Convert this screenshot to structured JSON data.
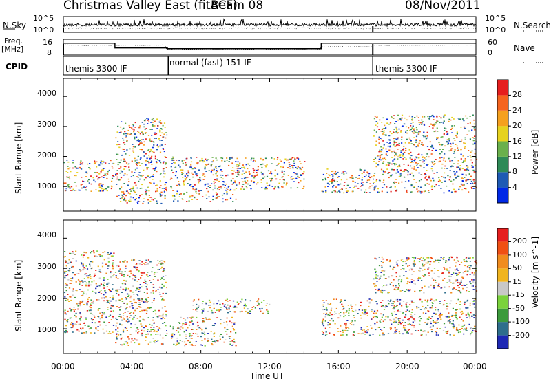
{
  "header": {
    "station": "Christmas Valley East (fitACF)",
    "beam": "Beam 08",
    "date": "08/Nov/2011"
  },
  "noise_panel": {
    "left_label": "N.Sky",
    "left_ticks": [
      "10^5",
      "10^0"
    ],
    "right_label": "N.Search",
    "right_ticks": [
      "10^5",
      "10^0"
    ]
  },
  "freq_panel": {
    "left_label_1": "Freq.",
    "left_label_2": "[MHz]",
    "left_ticks": [
      "16",
      "8"
    ],
    "right_label": "Nave",
    "right_ticks": [
      "60",
      "0"
    ]
  },
  "cpid": {
    "label": "CPID",
    "modes": [
      {
        "name": "themis 3300 IF",
        "start": 0.0,
        "end": 6.1
      },
      {
        "name": "normal (fast) 151 IF",
        "start": 6.1,
        "end": 18.0
      },
      {
        "name": "themis 3300 IF",
        "start": 18.0,
        "end": 24.0
      }
    ]
  },
  "chart_data": [
    {
      "type": "heatmap",
      "quantity": "Power",
      "ylabel": "Slant Range [km]",
      "yticks": [
        1000,
        2000,
        3000,
        4000
      ],
      "ylim": [
        180,
        4600
      ],
      "xlim": [
        0,
        24
      ],
      "colorbar": {
        "label": "Power [dB]",
        "ticks": [
          "4",
          "8",
          "12",
          "16",
          "20",
          "24",
          "28"
        ],
        "colors": [
          "#0028e6",
          "#1e5ab4",
          "#2e8a57",
          "#6ab04c",
          "#e6d21e",
          "#f5a01e",
          "#f5641e",
          "#e61e1e"
        ]
      },
      "features": [
        {
          "t": [
            0.0,
            2.9
          ],
          "r": [
            850,
            1900
          ],
          "value": "16-28"
        },
        {
          "t": [
            3.0,
            6.0
          ],
          "r": [
            450,
            3300
          ],
          "value": "4-12"
        },
        {
          "t": [
            6.2,
            10.0
          ],
          "r": [
            500,
            2000
          ],
          "value": "8-20"
        },
        {
          "t": [
            10.0,
            14.0
          ],
          "r": [
            900,
            2000
          ],
          "value": "12-28"
        },
        {
          "t": [
            15.0,
            24.0
          ],
          "r": [
            800,
            1600
          ],
          "value": "20-32"
        },
        {
          "t": [
            18.0,
            24.0
          ],
          "r": [
            1600,
            3400
          ],
          "value": "4-12"
        }
      ]
    },
    {
      "type": "heatmap",
      "quantity": "Velocity",
      "ylabel": "Slant Range [km]",
      "yticks": [
        1000,
        2000,
        3000,
        4000
      ],
      "ylim": [
        180,
        4600
      ],
      "xlim": [
        0,
        24
      ],
      "colorbar": {
        "label": "Velocity [m s^-1]",
        "ticks": [
          "200",
          "100",
          "50",
          "15",
          "-15",
          "-50",
          "-100",
          "-200"
        ],
        "colors": [
          "#1e28b4",
          "#2e6e8c",
          "#3c9a3c",
          "#7ad23c",
          "#c8c8c8",
          "#f0b41e",
          "#f08c1e",
          "#f05014",
          "#e61e1e"
        ]
      },
      "features": [
        {
          "t": [
            0.0,
            2.9
          ],
          "r": [
            850,
            3600
          ],
          "value": "-15 to 15"
        },
        {
          "t": [
            3.0,
            6.0
          ],
          "r": [
            450,
            3300
          ],
          "value": "15 to 100"
        },
        {
          "t": [
            6.2,
            10.0
          ],
          "r": [
            450,
            1400
          ],
          "value": "50 to 100"
        },
        {
          "t": [
            7.5,
            12.0
          ],
          "r": [
            1500,
            2000
          ],
          "value": "-50 to -100"
        },
        {
          "t": [
            15.0,
            24.0
          ],
          "r": [
            800,
            2000
          ],
          "value": "-15 to 15"
        },
        {
          "t": [
            18.0,
            24.0
          ],
          "r": [
            2200,
            3400
          ],
          "value": "-50 to 50"
        }
      ]
    }
  ],
  "xaxis": {
    "label": "Time UT",
    "ticks": [
      "00:00",
      "04:00",
      "08:00",
      "12:00",
      "16:00",
      "20:00",
      "00:00"
    ]
  }
}
